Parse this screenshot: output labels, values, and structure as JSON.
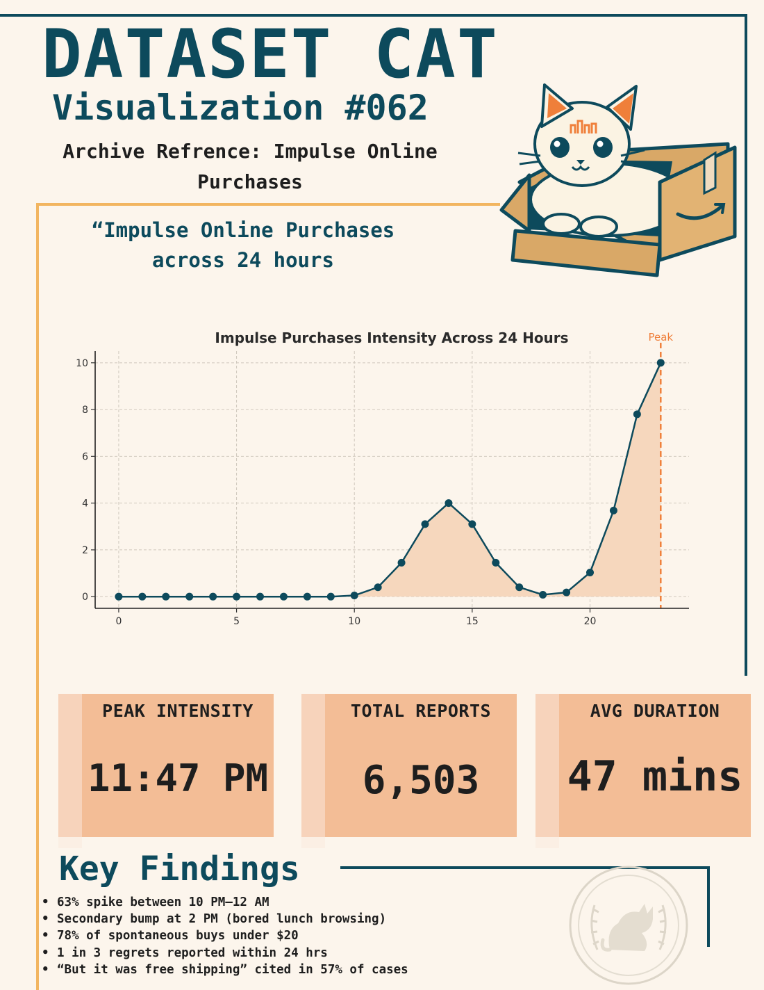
{
  "header": {
    "title": "DATASET CAT",
    "subtitle": "Visualization #062",
    "archive_ref_line1": "Archive Refrence: Impulse Online",
    "archive_ref_line2": "Purchases"
  },
  "quote": {
    "line1": "“Impulse Online Purchases",
    "line2": "across 24 hours"
  },
  "chart_data": {
    "type": "line",
    "title": "Impulse Purchases Intensity Across 24 Hours",
    "xlabel": "",
    "ylabel": "",
    "x": [
      0,
      1,
      2,
      3,
      4,
      5,
      6,
      7,
      8,
      9,
      10,
      11,
      12,
      13,
      14,
      15,
      16,
      17,
      18,
      19,
      20,
      21,
      22,
      23
    ],
    "y": [
      0,
      0,
      0,
      0,
      0,
      0,
      0,
      0,
      0,
      0,
      0.05,
      0.4,
      1.45,
      3.1,
      4.0,
      3.1,
      1.45,
      0.4,
      0.08,
      0.18,
      1.03,
      3.68,
      7.8,
      10
    ],
    "xlim": [
      -1,
      24.2
    ],
    "ylim": [
      -0.5,
      10.5
    ],
    "x_ticks": [
      0,
      5,
      10,
      15,
      20
    ],
    "y_ticks": [
      0,
      2,
      4,
      6,
      8,
      10
    ],
    "grid": true,
    "fill_under": true,
    "annotation": {
      "label": "Peak",
      "x": 23
    },
    "colors": {
      "line": "#0d4a5c",
      "fill": "#f6d7bd",
      "peak": "#ef7f3a",
      "grid": "#cfc8bd"
    }
  },
  "stats": [
    {
      "label": "PEAK INTENSITY",
      "value": "11:47 PM"
    },
    {
      "label": "TOTAL REPORTS",
      "value": "6,503"
    },
    {
      "label": "AVG DURATION",
      "value": "47 mins"
    }
  ],
  "findings": {
    "title": "Key Findings",
    "items": [
      "63% spike between 10 PM–12 AM",
      "Secondary bump at 2 PM (bored lunch browsing)",
      "78% of spontaneous buys under $20",
      "1 in 3 regrets reported within 24 hrs",
      "“But it was free shipping” cited in 57% of cases"
    ]
  },
  "colors": {
    "background": "#fcf5ec",
    "navy": "#0d4a5c",
    "orange": "#f2b560",
    "card": "#f3bd96"
  }
}
